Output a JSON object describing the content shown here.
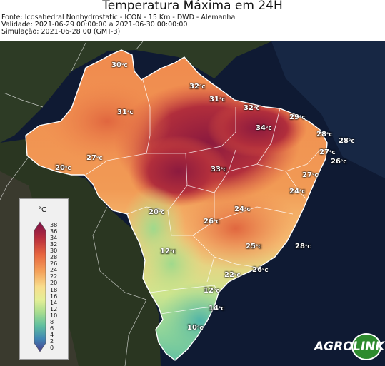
{
  "header": {
    "title": "Temperatura Máxima em 24H",
    "source": "Fonte: Icosahedral Nonhydrostatic - ICON - 15 Km - DWD - Alemanha",
    "validity": "Validade: 2021-06-29 00:00:00 a 2021-06-30 00:00:00",
    "simulation": "Simulação: 2021-06-28 00 (GMT-3)"
  },
  "legend": {
    "unit": "°C",
    "ticks": [
      "38",
      "36",
      "34",
      "32",
      "30",
      "28",
      "26",
      "24",
      "22",
      "20",
      "18",
      "16",
      "14",
      "12",
      "10",
      "8",
      "6",
      "4",
      "2",
      "0"
    ]
  },
  "labels": [
    {
      "value": "30",
      "unit": "°C"
    },
    {
      "value": "32",
      "unit": "°C"
    },
    {
      "value": "31",
      "unit": "°C"
    },
    {
      "value": "31",
      "unit": "°C"
    },
    {
      "value": "32",
      "unit": "°C"
    },
    {
      "value": "29",
      "unit": "°C"
    },
    {
      "value": "34",
      "unit": "°C"
    },
    {
      "value": "28",
      "unit": "°C"
    },
    {
      "value": "28",
      "unit": "°C"
    },
    {
      "value": "27",
      "unit": "°C"
    },
    {
      "value": "27",
      "unit": "°C"
    },
    {
      "value": "26",
      "unit": "°C"
    },
    {
      "value": "20",
      "unit": "°C"
    },
    {
      "value": "33",
      "unit": "°C"
    },
    {
      "value": "27",
      "unit": "°C"
    },
    {
      "value": "24",
      "unit": "°C"
    },
    {
      "value": "20",
      "unit": "°C"
    },
    {
      "value": "24",
      "unit": "°C"
    },
    {
      "value": "26",
      "unit": "°C"
    },
    {
      "value": "12",
      "unit": "°C"
    },
    {
      "value": "25",
      "unit": "°C"
    },
    {
      "value": "28",
      "unit": "°C"
    },
    {
      "value": "26",
      "unit": "°C"
    },
    {
      "value": "22",
      "unit": "°C"
    },
    {
      "value": "12",
      "unit": "°C"
    },
    {
      "value": "14",
      "unit": "°C"
    },
    {
      "value": "10",
      "unit": "°C"
    }
  ],
  "logo": {
    "part1": "AGRO",
    "part2": "LINK"
  },
  "colors": {
    "ocean": "#101a30",
    "land": "#2c3a22",
    "hot": "#9e1f3d",
    "warm": "#f07b45",
    "mild": "#f6d98a",
    "cool": "#c6e68f",
    "cold": "#5fbf9c",
    "logo_green": "#2e8b2e"
  }
}
